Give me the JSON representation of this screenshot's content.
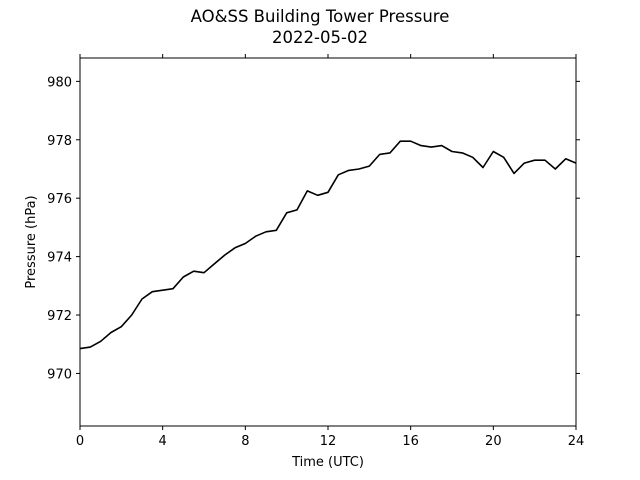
{
  "chart_data": {
    "type": "line",
    "title": "AO&SS Building Tower Pressure",
    "subtitle": "2022-05-02",
    "xlabel": "Time (UTC)",
    "ylabel": "Pressure (hPa)",
    "xlim": [
      0,
      24
    ],
    "ylim": [
      968.2,
      980.8
    ],
    "xticks": [
      0,
      4,
      8,
      12,
      16,
      20,
      24
    ],
    "yticks": [
      970,
      972,
      974,
      976,
      978,
      980
    ],
    "grid": false,
    "legend": "none",
    "line_color": "#000000",
    "series": [
      {
        "x": [
          0,
          0.5,
          1,
          1.5,
          2,
          2.5,
          3,
          3.5,
          4,
          4.5,
          5,
          5.5,
          6,
          6.5,
          7,
          7.5,
          8,
          8.5,
          9,
          9.5,
          10,
          10.5,
          11,
          11.5,
          12,
          12.5,
          13,
          13.5,
          14,
          14.5,
          15,
          15.5,
          16,
          16.5,
          17,
          17.5,
          18,
          18.5,
          19,
          19.5,
          20,
          20.5,
          21,
          21.5,
          22,
          22.5,
          23,
          23.5,
          24
        ],
        "y": [
          970.85,
          970.9,
          971.1,
          971.4,
          971.6,
          972.0,
          972.55,
          972.8,
          972.85,
          972.9,
          973.3,
          973.5,
          973.45,
          973.75,
          974.05,
          974.3,
          974.45,
          974.7,
          974.85,
          974.9,
          975.5,
          975.6,
          976.25,
          976.1,
          976.2,
          976.8,
          976.95,
          977.0,
          977.1,
          977.5,
          977.55,
          977.95,
          977.95,
          977.8,
          977.75,
          977.8,
          977.6,
          977.55,
          977.4,
          977.05,
          977.6,
          977.4,
          976.85,
          977.2,
          977.3,
          977.3,
          977.0,
          977.35,
          977.2
        ]
      }
    ]
  }
}
